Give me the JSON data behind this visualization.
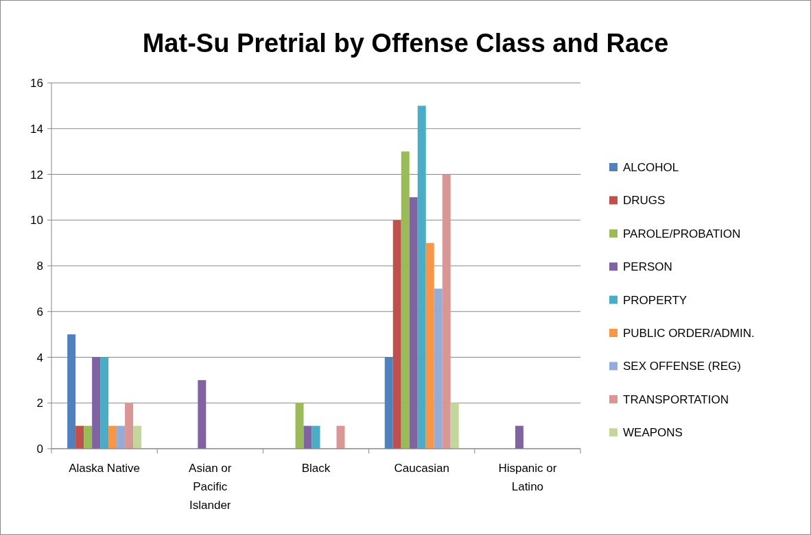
{
  "chart_data": {
    "type": "bar",
    "title": "Mat-Su Pretrial by Offense Class and Race",
    "categories": [
      "Alaska Native",
      "Asian or Pacific Islander",
      "Black",
      "Caucasian",
      "Hispanic or Latino"
    ],
    "series": [
      {
        "name": "ALCOHOL",
        "color": "#4f81bd",
        "values": [
          5,
          0,
          0,
          4,
          0
        ]
      },
      {
        "name": "DRUGS",
        "color": "#c0504d",
        "values": [
          1,
          0,
          0,
          10,
          0
        ]
      },
      {
        "name": "PAROLE/PROBATION",
        "color": "#9bbb59",
        "values": [
          1,
          0,
          2,
          13,
          0
        ]
      },
      {
        "name": "PERSON",
        "color": "#8064a2",
        "values": [
          4,
          3,
          1,
          11,
          1
        ]
      },
      {
        "name": "PROPERTY",
        "color": "#4bacc6",
        "values": [
          4,
          0,
          1,
          15,
          0
        ]
      },
      {
        "name": "PUBLIC ORDER/ADMIN.",
        "color": "#f79646",
        "values": [
          1,
          0,
          0,
          9,
          0
        ]
      },
      {
        "name": "SEX OFFENSE (REG)",
        "color": "#95abd8",
        "values": [
          1,
          0,
          0,
          7,
          0
        ]
      },
      {
        "name": "TRANSPORTATION",
        "color": "#da9694",
        "values": [
          2,
          0,
          1,
          12,
          0
        ]
      },
      {
        "name": "WEAPONS",
        "color": "#c3d69b",
        "values": [
          1,
          0,
          0,
          2,
          0
        ]
      }
    ],
    "ylim": [
      0,
      16
    ],
    "yticks": [
      0,
      2,
      4,
      6,
      8,
      10,
      12,
      14,
      16
    ],
    "grid": "y",
    "legend": "right"
  }
}
